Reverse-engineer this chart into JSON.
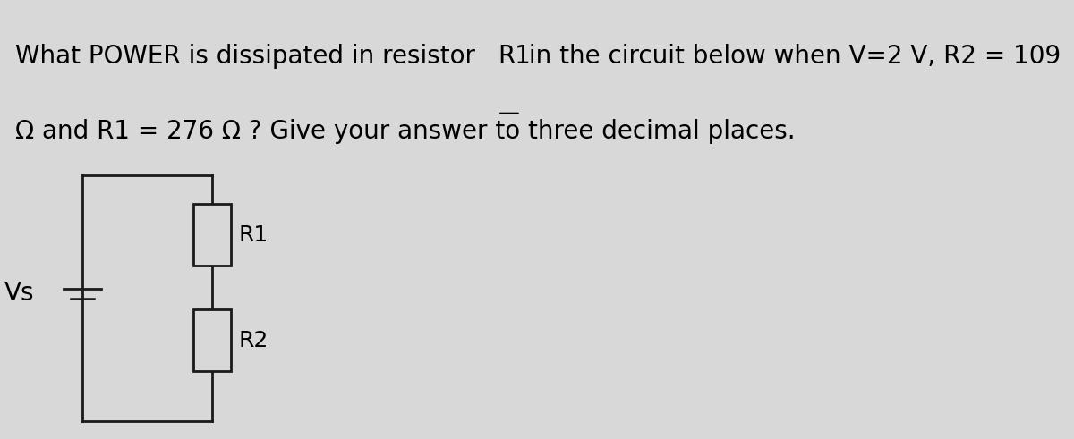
{
  "bg_color": "#d8d8d8",
  "text_line1_part1": "What POWER is dissipated in resistor ",
  "text_line1_part2": "R1",
  "text_line1_part3": " in the circuit below when V=2 V, R2 = 109",
  "text_line2": "Ω and R1 = 276 Ω ? Give your answer to three decimal places.",
  "label_vs": "Vs",
  "label_r1": "R1",
  "label_r2": "R2",
  "font_size_text": 20,
  "font_size_labels": 18,
  "circuit_color": "#1a1a1a",
  "line_width": 2.0
}
